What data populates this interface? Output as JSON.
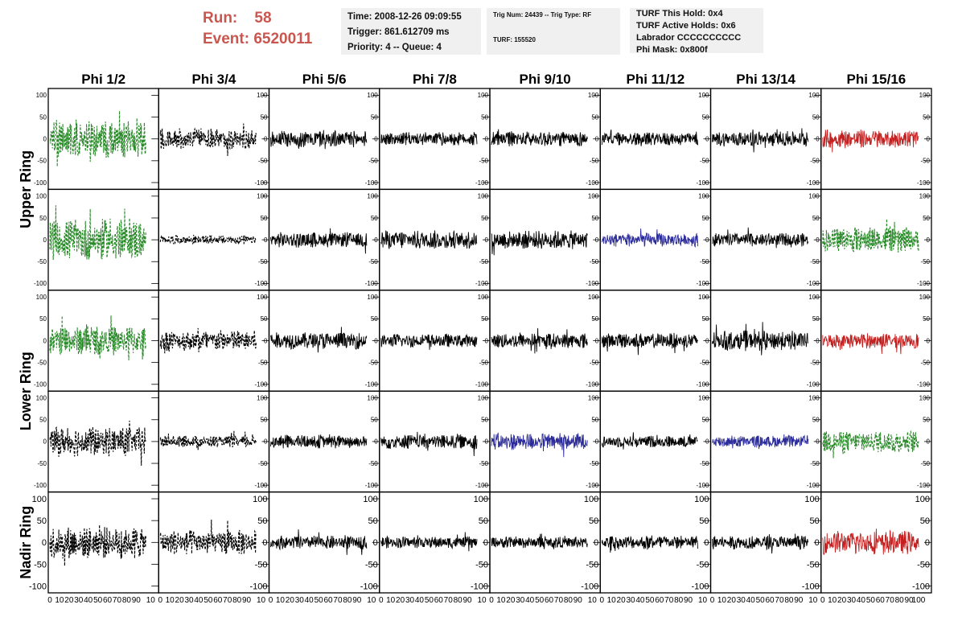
{
  "header": {
    "run_label": "Run:",
    "run_value": "58",
    "event_label": "Event:",
    "event_value": "6520011",
    "time_line": "Time: 2008-12-26 09:09:55",
    "trigger_line": "Trigger: 861.612709 ms",
    "priority_line": "Priority: 4 -- Queue: 4",
    "trig_line": "Trig Num: 24439 -- Trig Type: RF",
    "turf_line": "TURF: 155520",
    "hold_line": "TURF This Hold: 0x4",
    "active_line": "TURF Active Holds: 0x6",
    "labrador_line": "Labrador CCCCCCCCCC",
    "mask_line": "Phi Mask: 0x800f"
  },
  "chart_data": {
    "type": "line",
    "title": "",
    "columns": [
      "Phi 1/2",
      "Phi 3/4",
      "Phi 5/6",
      "Phi 7/8",
      "Phi 9/10",
      "Phi 11/12",
      "Phi 13/14",
      "Phi 15/16"
    ],
    "row_labels": [
      {
        "label": "Upper Ring",
        "rows": [
          0,
          1
        ]
      },
      {
        "label": "Lower Ring",
        "rows": [
          2,
          3
        ]
      },
      {
        "label": "Nadir Ring",
        "rows": [
          4
        ]
      }
    ],
    "ylim": [
      -110,
      110
    ],
    "xlim": [
      0,
      100
    ],
    "y_ticks": [
      -100,
      -50,
      0,
      50,
      100
    ],
    "x_ticks": [
      0,
      10,
      20,
      30,
      40,
      50,
      60,
      70,
      80,
      90,
      100
    ],
    "x_tick_labels": [
      "0",
      "10",
      "20",
      "30",
      "40",
      "50",
      "60",
      "70",
      "80",
      "90",
      "100"
    ],
    "colors": {
      "black": "#000000",
      "green": "#2a8a2a",
      "blue": "#2b2b9a",
      "red": "#c42020"
    },
    "traces": [
      [
        {
          "color": "green",
          "style": "dashed",
          "amp": 45
        },
        {
          "color": "black",
          "style": "dashed",
          "amp": 25
        },
        {
          "color": "black",
          "style": "solid",
          "amp": 20
        },
        {
          "color": "black",
          "style": "solid",
          "amp": 16
        },
        {
          "color": "black",
          "style": "solid",
          "amp": 18
        },
        {
          "color": "black",
          "style": "solid",
          "amp": 16
        },
        {
          "color": "black",
          "style": "solid",
          "amp": 18
        },
        {
          "color": "red",
          "style": "solid",
          "amp": 22
        }
      ],
      [
        {
          "color": "green",
          "style": "dashed",
          "amp": 48
        },
        {
          "color": "black",
          "style": "dashed",
          "amp": 10
        },
        {
          "color": "black",
          "style": "solid",
          "amp": 18
        },
        {
          "color": "black",
          "style": "solid",
          "amp": 22
        },
        {
          "color": "black",
          "style": "solid",
          "amp": 22
        },
        {
          "color": "blue",
          "style": "solid",
          "amp": 16
        },
        {
          "color": "black",
          "style": "solid",
          "amp": 16
        },
        {
          "color": "green",
          "style": "dashed",
          "amp": 30
        }
      ],
      [
        {
          "color": "green",
          "style": "dashed",
          "amp": 35
        },
        {
          "color": "black",
          "style": "dashed",
          "amp": 25
        },
        {
          "color": "black",
          "style": "solid",
          "amp": 20
        },
        {
          "color": "black",
          "style": "solid",
          "amp": 16
        },
        {
          "color": "black",
          "style": "solid",
          "amp": 18
        },
        {
          "color": "black",
          "style": "solid",
          "amp": 18
        },
        {
          "color": "black",
          "style": "solid",
          "amp": 24
        },
        {
          "color": "red",
          "style": "solid",
          "amp": 18
        }
      ],
      [
        {
          "color": "black",
          "style": "dashed",
          "amp": 35
        },
        {
          "color": "black",
          "style": "dashed",
          "amp": 14
        },
        {
          "color": "black",
          "style": "solid",
          "amp": 16
        },
        {
          "color": "black",
          "style": "solid",
          "amp": 18
        },
        {
          "color": "blue",
          "style": "solid",
          "amp": 20
        },
        {
          "color": "black",
          "style": "solid",
          "amp": 14
        },
        {
          "color": "blue",
          "style": "solid",
          "amp": 14
        },
        {
          "color": "green",
          "style": "dashed",
          "amp": 26
        }
      ],
      [
        {
          "color": "black",
          "style": "dashed",
          "amp": 38
        },
        {
          "color": "black",
          "style": "dashed",
          "amp": 30
        },
        {
          "color": "black",
          "style": "solid",
          "amp": 16
        },
        {
          "color": "black",
          "style": "solid",
          "amp": 14
        },
        {
          "color": "black",
          "style": "solid",
          "amp": 14
        },
        {
          "color": "black",
          "style": "solid",
          "amp": 16
        },
        {
          "color": "black",
          "style": "solid",
          "amp": 16
        },
        {
          "color": "red",
          "style": "solid",
          "amp": 28
        }
      ]
    ]
  }
}
